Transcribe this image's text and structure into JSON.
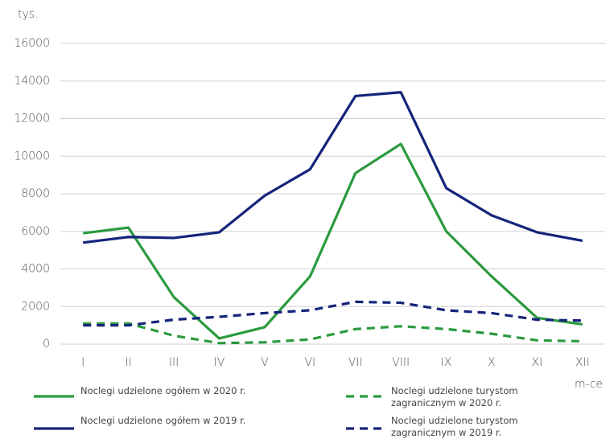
{
  "chart_data": {
    "type": "line",
    "ylabel": "tys.",
    "xlabel": "m-ce",
    "categories": [
      "I",
      "II",
      "III",
      "IV",
      "V",
      "VI",
      "VII",
      "VIII",
      "IX",
      "X",
      "XI",
      "XII"
    ],
    "series": [
      {
        "name": "Noclegi udzielone ogółem w 2020 r.",
        "color": "#2a9a3e",
        "dashed": false,
        "values": [
          5900,
          6200,
          2500,
          300,
          900,
          3600,
          9100,
          10650,
          6000,
          3600,
          1400,
          1050
        ]
      },
      {
        "name": "Noclegi udzielone ogółem w 2019 r.",
        "color": "#15247a",
        "dashed": false,
        "values": [
          5400,
          5700,
          5650,
          5950,
          7900,
          9300,
          13200,
          13400,
          8300,
          6850,
          5950,
          5500
        ]
      },
      {
        "name": "Noclegi udzielone turystom zagranicznym w 2020 r.",
        "color": "#2a9a3e",
        "dashed": true,
        "values": [
          1100,
          1100,
          450,
          50,
          100,
          250,
          800,
          950,
          800,
          550,
          200,
          150
        ]
      },
      {
        "name": "Noclegi udzielone turystom zagranicznym w 2019 r.",
        "color": "#15247a",
        "dashed": true,
        "values": [
          1000,
          1000,
          1300,
          1450,
          1650,
          1800,
          2250,
          2200,
          1800,
          1650,
          1300,
          1250
        ]
      }
    ],
    "ylim": [
      0,
      16000
    ],
    "yticks": [
      0,
      2000,
      4000,
      6000,
      8000,
      10000,
      12000,
      14000,
      16000
    ],
    "grid": true
  }
}
